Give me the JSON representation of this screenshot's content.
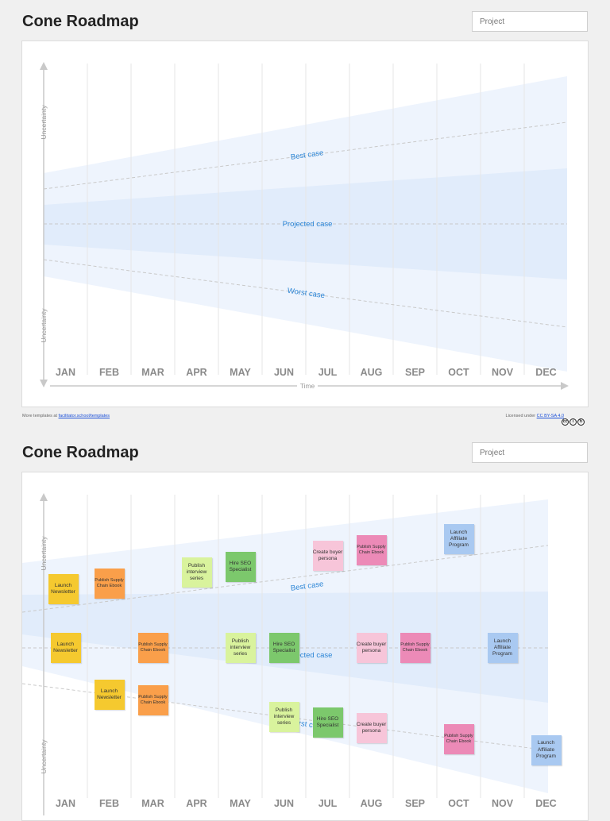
{
  "colors": {
    "cone_outer": "#eef4fd",
    "cone_inner": "#e1ecfb",
    "case_label": "#2d86d6",
    "month_label": "#8a8a8a",
    "axis": "#c9c9c9",
    "yellow": "#f5c92f",
    "orange": "#fa9f4a",
    "lightgreen": "#d9f39d",
    "green": "#7cc86c",
    "pink": "#f7c5d9",
    "magenta": "#ec8ab7",
    "blue": "#a9c9f1"
  },
  "top": {
    "header": {
      "title": "Cone Roadmap",
      "project_placeholder": "Project"
    },
    "footer": {
      "left_prefix": "More templates at ",
      "left_link": "facilitator.school/templates",
      "right_prefix": "Licensed under ",
      "right_link": "CC BY-SA 4.0",
      "cc_icons": [
        "cc-icon",
        "by-icon",
        "sa-icon"
      ]
    },
    "chart_data": {
      "type": "cone_roadmap",
      "months": [
        "JAN",
        "FEB",
        "MAR",
        "APR",
        "MAY",
        "JUN",
        "JUL",
        "AUG",
        "SEP",
        "OCT",
        "NOV",
        "DEC"
      ],
      "y_axis_label": "Uncertainty",
      "x_axis_label": "Time",
      "cases": [
        "Best case",
        "Projected case",
        "Worst case"
      ]
    }
  },
  "bottom": {
    "header": {
      "title": "Cone Roadmap",
      "project_placeholder": "Project"
    },
    "chart_data": {
      "type": "cone_roadmap",
      "months": [
        "JAN",
        "FEB",
        "MAR",
        "APR",
        "MAY",
        "JUN",
        "JUL",
        "AUG",
        "SEP",
        "OCT",
        "NOV",
        "DEC"
      ],
      "y_axis_label": "Uncertainty",
      "cases": [
        "Best case",
        "Projected case",
        "Worst case"
      ],
      "stickies": [
        {
          "case": "Best case",
          "month": "JAN",
          "text": "Launch Newsletter",
          "color": "yellow"
        },
        {
          "case": "Best case",
          "month": "FEB",
          "text": "Publish Supply Chain Ebook",
          "color": "orange"
        },
        {
          "case": "Best case",
          "month": "APR",
          "text": "Publish interview series",
          "color": "lightgreen"
        },
        {
          "case": "Best case",
          "month": "MAY",
          "text": "Hire SEO Specialist",
          "color": "green"
        },
        {
          "case": "Best case",
          "month": "JUL",
          "text": "Create buyer persona",
          "color": "pink"
        },
        {
          "case": "Best case",
          "month": "AUG",
          "text": "Publish Supply Chain Ebook",
          "color": "magenta"
        },
        {
          "case": "Best case",
          "month": "OCT",
          "text": "Launch Affiliate Program",
          "color": "blue"
        },
        {
          "case": "Projected case",
          "month": "JAN",
          "text": "Launch Newsletter",
          "color": "yellow"
        },
        {
          "case": "Projected case",
          "month": "MAR",
          "text": "Publish Supply Chain Ebook",
          "color": "orange"
        },
        {
          "case": "Projected case",
          "month": "MAY",
          "text": "Publish interview series",
          "color": "lightgreen"
        },
        {
          "case": "Projected case",
          "month": "JUN",
          "text": "Hire SEO Specialist",
          "color": "green"
        },
        {
          "case": "Projected case",
          "month": "AUG",
          "text": "Create buyer persona",
          "color": "pink"
        },
        {
          "case": "Projected case",
          "month": "SEP",
          "text": "Publish Supply Chain Ebook",
          "color": "magenta"
        },
        {
          "case": "Projected case",
          "month": "NOV",
          "text": "Launch Affiliate Program",
          "color": "blue"
        },
        {
          "case": "Worst case",
          "month": "FEB",
          "text": "Launch Newsletter",
          "color": "yellow"
        },
        {
          "case": "Worst case",
          "month": "MAR",
          "text": "Publish Supply Chain Ebook",
          "color": "orange"
        },
        {
          "case": "Worst case",
          "month": "JUN",
          "text": "Publish interview series",
          "color": "lightgreen"
        },
        {
          "case": "Worst case",
          "month": "JUL",
          "text": "Hire SEO Specialist",
          "color": "green"
        },
        {
          "case": "Worst case",
          "month": "AUG",
          "text": "Create buyer persona",
          "color": "pink"
        },
        {
          "case": "Worst case",
          "month": "OCT",
          "text": "Publish Supply Chain Ebook",
          "color": "magenta"
        },
        {
          "case": "Worst case",
          "month": "DEC",
          "text": "Launch Affiliate Program",
          "color": "blue"
        }
      ]
    }
  }
}
